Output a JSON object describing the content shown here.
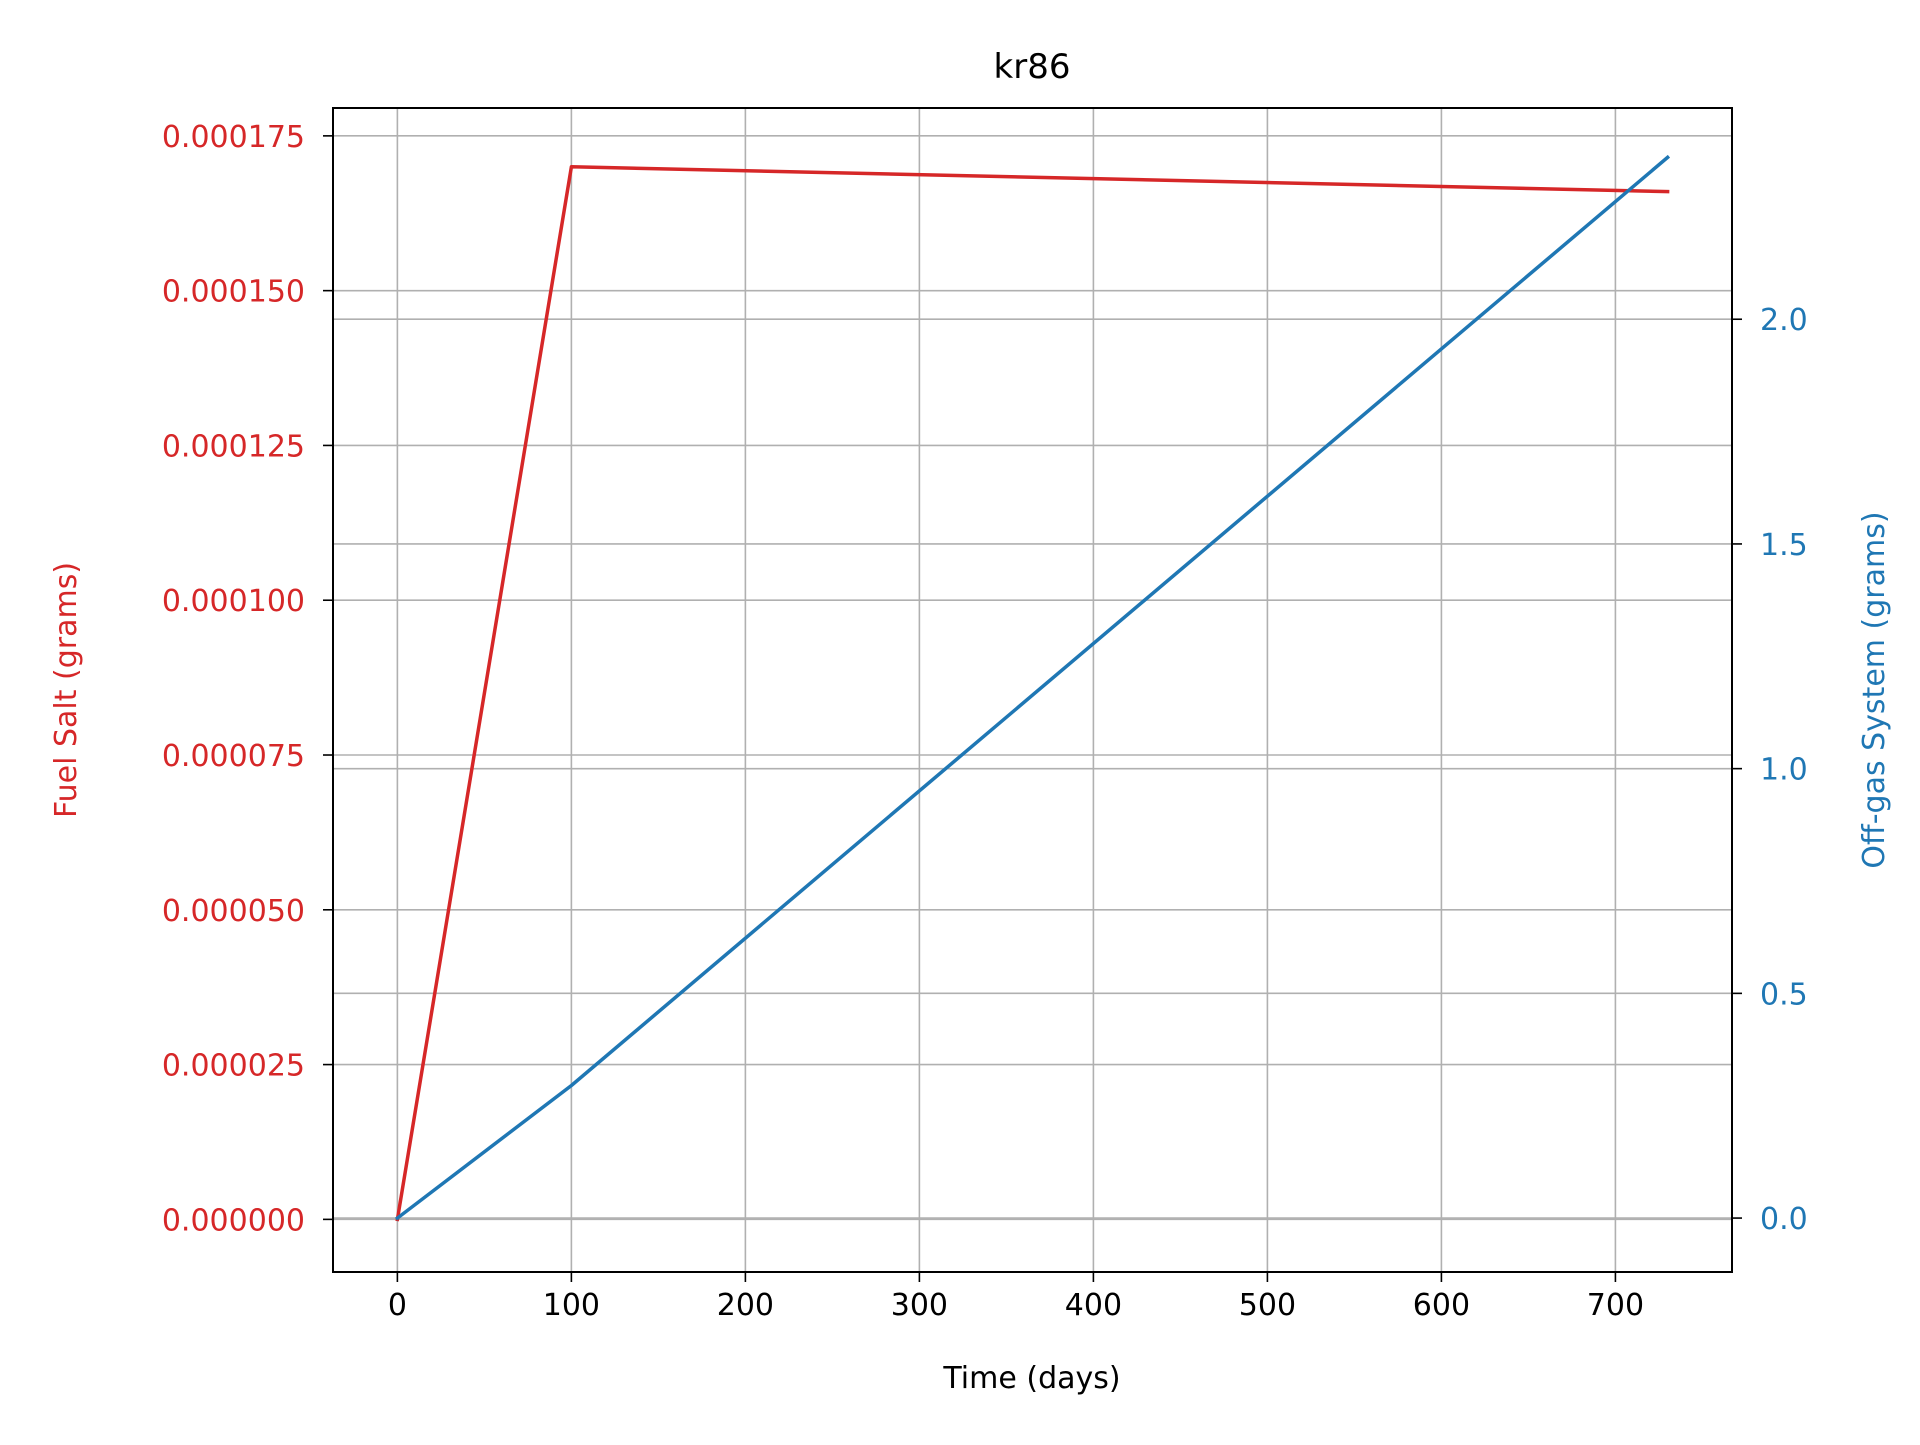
{
  "chart_data": {
    "type": "line",
    "title": "kr86",
    "xlabel": "Time (days)",
    "ylabel_left": "Fuel Salt (grams)",
    "ylabel_right": "Off-gas System (grams)",
    "xlim": [
      -37,
      767
    ],
    "ylim_left": [
      -8.5e-06,
      0.0001795
    ],
    "ylim_right": [
      -0.12,
      2.47
    ],
    "x_ticks": [
      0,
      100,
      200,
      300,
      400,
      500,
      600,
      700
    ],
    "x_tick_labels": [
      "0",
      "100",
      "200",
      "300",
      "400",
      "500",
      "600",
      "700"
    ],
    "y_left_ticks": [
      0,
      2.5e-05,
      5e-05,
      7.5e-05,
      0.0001,
      0.000125,
      0.00015,
      0.000175
    ],
    "y_left_tick_labels": [
      "0.000000",
      "0.000025",
      "0.000050",
      "0.000075",
      "0.000100",
      "0.000125",
      "0.000150",
      "0.000175"
    ],
    "y_right_ticks": [
      0,
      0.5,
      1.0,
      1.5,
      2.0
    ],
    "y_right_tick_labels": [
      "0.0",
      "0.5",
      "1.0",
      "1.5",
      "2.0"
    ],
    "grid": true,
    "series": [
      {
        "axis": "left",
        "color": "#d62728",
        "x": [
          0,
          100,
          730
        ],
        "y": [
          0,
          0.00017,
          0.000166
        ]
      },
      {
        "axis": "right",
        "color": "#1f77b4",
        "x": [
          0,
          100,
          730
        ],
        "y": [
          0,
          0.295,
          2.36
        ]
      }
    ],
    "colors": {
      "left_axis": "#d62728",
      "right_axis": "#1f77b4",
      "text": "#000000",
      "grid": "#b0b0b0"
    }
  }
}
